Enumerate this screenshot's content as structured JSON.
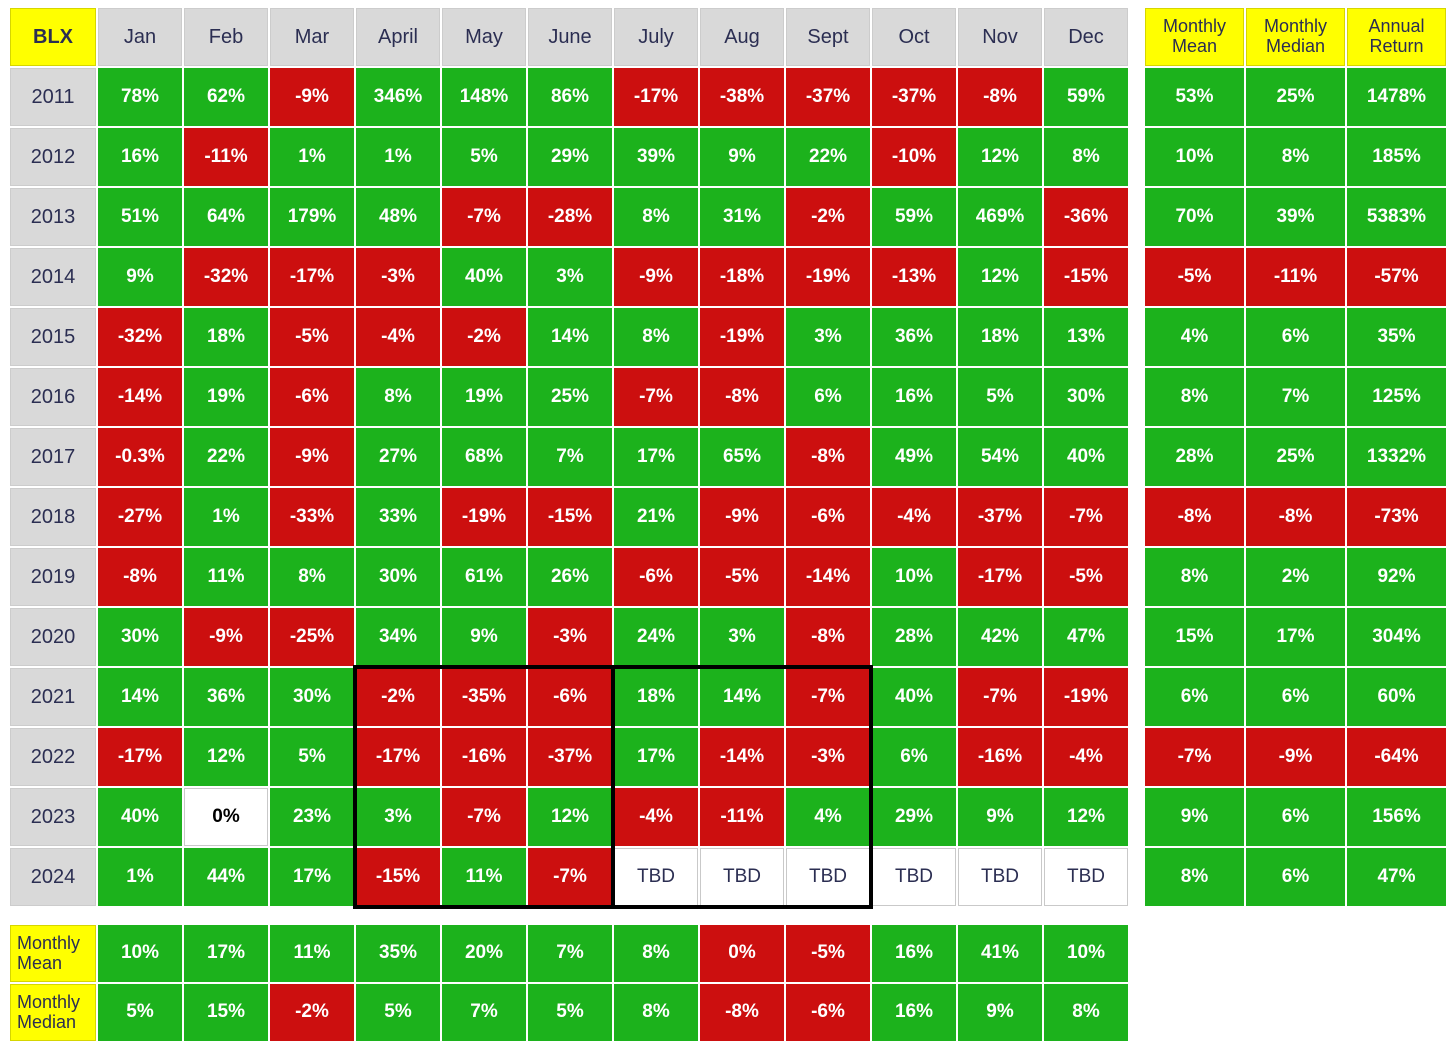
{
  "colors": {
    "positive_green": "#1cb21c",
    "negative_red": "#cc0f0f",
    "header_gray": "#d9d9d9",
    "label_yellow": "#ffff00",
    "dark_navy_text": "#2b2e52",
    "value_text_white": "#ffffff",
    "highlight_border_black": "#000000"
  },
  "chart_data": {
    "type": "heatmap",
    "corner_label": "BLX",
    "months": [
      "Jan",
      "Feb",
      "Mar",
      "April",
      "May",
      "June",
      "July",
      "Aug",
      "Sept",
      "Oct",
      "Nov",
      "Dec"
    ],
    "summary_headers": [
      "Monthly\nMean",
      "Monthly\nMedian",
      "Annual\nReturn"
    ],
    "rows": [
      {
        "year": "2011",
        "cells": [
          [
            "78%",
            "g"
          ],
          [
            "62%",
            "g"
          ],
          [
            "-9%",
            "r"
          ],
          [
            "346%",
            "g"
          ],
          [
            "148%",
            "g"
          ],
          [
            "86%",
            "g"
          ],
          [
            "-17%",
            "r"
          ],
          [
            "-38%",
            "r"
          ],
          [
            "-37%",
            "r"
          ],
          [
            "-37%",
            "r"
          ],
          [
            "-8%",
            "r"
          ],
          [
            "59%",
            "g"
          ]
        ],
        "summary": [
          [
            "53%",
            "g"
          ],
          [
            "25%",
            "g"
          ],
          [
            "1478%",
            "g"
          ]
        ]
      },
      {
        "year": "2012",
        "cells": [
          [
            "16%",
            "g"
          ],
          [
            "-11%",
            "r"
          ],
          [
            "1%",
            "g"
          ],
          [
            "1%",
            "g"
          ],
          [
            "5%",
            "g"
          ],
          [
            "29%",
            "g"
          ],
          [
            "39%",
            "g"
          ],
          [
            "9%",
            "g"
          ],
          [
            "22%",
            "g"
          ],
          [
            "-10%",
            "r"
          ],
          [
            "12%",
            "g"
          ],
          [
            "8%",
            "g"
          ]
        ],
        "summary": [
          [
            "10%",
            "g"
          ],
          [
            "8%",
            "g"
          ],
          [
            "185%",
            "g"
          ]
        ]
      },
      {
        "year": "2013",
        "cells": [
          [
            "51%",
            "g"
          ],
          [
            "64%",
            "g"
          ],
          [
            "179%",
            "g"
          ],
          [
            "48%",
            "g"
          ],
          [
            "-7%",
            "r"
          ],
          [
            "-28%",
            "r"
          ],
          [
            "8%",
            "g"
          ],
          [
            "31%",
            "g"
          ],
          [
            "-2%",
            "r"
          ],
          [
            "59%",
            "g"
          ],
          [
            "469%",
            "g"
          ],
          [
            "-36%",
            "r"
          ]
        ],
        "summary": [
          [
            "70%",
            "g"
          ],
          [
            "39%",
            "g"
          ],
          [
            "5383%",
            "g"
          ]
        ]
      },
      {
        "year": "2014",
        "cells": [
          [
            "9%",
            "g"
          ],
          [
            "-32%",
            "r"
          ],
          [
            "-17%",
            "r"
          ],
          [
            "-3%",
            "r"
          ],
          [
            "40%",
            "g"
          ],
          [
            "3%",
            "g"
          ],
          [
            "-9%",
            "r"
          ],
          [
            "-18%",
            "r"
          ],
          [
            "-19%",
            "r"
          ],
          [
            "-13%",
            "r"
          ],
          [
            "12%",
            "g"
          ],
          [
            "-15%",
            "r"
          ]
        ],
        "summary": [
          [
            "-5%",
            "r"
          ],
          [
            "-11%",
            "r"
          ],
          [
            "-57%",
            "r"
          ]
        ]
      },
      {
        "year": "2015",
        "cells": [
          [
            "-32%",
            "r"
          ],
          [
            "18%",
            "g"
          ],
          [
            "-5%",
            "r"
          ],
          [
            "-4%",
            "r"
          ],
          [
            "-2%",
            "r"
          ],
          [
            "14%",
            "g"
          ],
          [
            "8%",
            "g"
          ],
          [
            "-19%",
            "r"
          ],
          [
            "3%",
            "g"
          ],
          [
            "36%",
            "g"
          ],
          [
            "18%",
            "g"
          ],
          [
            "13%",
            "g"
          ]
        ],
        "summary": [
          [
            "4%",
            "g"
          ],
          [
            "6%",
            "g"
          ],
          [
            "35%",
            "g"
          ]
        ]
      },
      {
        "year": "2016",
        "cells": [
          [
            "-14%",
            "r"
          ],
          [
            "19%",
            "g"
          ],
          [
            "-6%",
            "r"
          ],
          [
            "8%",
            "g"
          ],
          [
            "19%",
            "g"
          ],
          [
            "25%",
            "g"
          ],
          [
            "-7%",
            "r"
          ],
          [
            "-8%",
            "r"
          ],
          [
            "6%",
            "g"
          ],
          [
            "16%",
            "g"
          ],
          [
            "5%",
            "g"
          ],
          [
            "30%",
            "g"
          ]
        ],
        "summary": [
          [
            "8%",
            "g"
          ],
          [
            "7%",
            "g"
          ],
          [
            "125%",
            "g"
          ]
        ]
      },
      {
        "year": "2017",
        "cells": [
          [
            "-0.3%",
            "r"
          ],
          [
            "22%",
            "g"
          ],
          [
            "-9%",
            "r"
          ],
          [
            "27%",
            "g"
          ],
          [
            "68%",
            "g"
          ],
          [
            "7%",
            "g"
          ],
          [
            "17%",
            "g"
          ],
          [
            "65%",
            "g"
          ],
          [
            "-8%",
            "r"
          ],
          [
            "49%",
            "g"
          ],
          [
            "54%",
            "g"
          ],
          [
            "40%",
            "g"
          ]
        ],
        "summary": [
          [
            "28%",
            "g"
          ],
          [
            "25%",
            "g"
          ],
          [
            "1332%",
            "g"
          ]
        ]
      },
      {
        "year": "2018",
        "cells": [
          [
            "-27%",
            "r"
          ],
          [
            "1%",
            "g"
          ],
          [
            "-33%",
            "r"
          ],
          [
            "33%",
            "g"
          ],
          [
            "-19%",
            "r"
          ],
          [
            "-15%",
            "r"
          ],
          [
            "21%",
            "g"
          ],
          [
            "-9%",
            "r"
          ],
          [
            "-6%",
            "r"
          ],
          [
            "-4%",
            "r"
          ],
          [
            "-37%",
            "r"
          ],
          [
            "-7%",
            "r"
          ]
        ],
        "summary": [
          [
            "-8%",
            "r"
          ],
          [
            "-8%",
            "r"
          ],
          [
            "-73%",
            "r"
          ]
        ]
      },
      {
        "year": "2019",
        "cells": [
          [
            "-8%",
            "r"
          ],
          [
            "11%",
            "g"
          ],
          [
            "8%",
            "g"
          ],
          [
            "30%",
            "g"
          ],
          [
            "61%",
            "g"
          ],
          [
            "26%",
            "g"
          ],
          [
            "-6%",
            "r"
          ],
          [
            "-5%",
            "r"
          ],
          [
            "-14%",
            "r"
          ],
          [
            "10%",
            "g"
          ],
          [
            "-17%",
            "r"
          ],
          [
            "-5%",
            "r"
          ]
        ],
        "summary": [
          [
            "8%",
            "g"
          ],
          [
            "2%",
            "g"
          ],
          [
            "92%",
            "g"
          ]
        ]
      },
      {
        "year": "2020",
        "cells": [
          [
            "30%",
            "g"
          ],
          [
            "-9%",
            "r"
          ],
          [
            "-25%",
            "r"
          ],
          [
            "34%",
            "g"
          ],
          [
            "9%",
            "g"
          ],
          [
            "-3%",
            "r"
          ],
          [
            "24%",
            "g"
          ],
          [
            "3%",
            "g"
          ],
          [
            "-8%",
            "r"
          ],
          [
            "28%",
            "g"
          ],
          [
            "42%",
            "g"
          ],
          [
            "47%",
            "g"
          ]
        ],
        "summary": [
          [
            "15%",
            "g"
          ],
          [
            "17%",
            "g"
          ],
          [
            "304%",
            "g"
          ]
        ]
      },
      {
        "year": "2021",
        "cells": [
          [
            "14%",
            "g"
          ],
          [
            "36%",
            "g"
          ],
          [
            "30%",
            "g"
          ],
          [
            "-2%",
            "r"
          ],
          [
            "-35%",
            "r"
          ],
          [
            "-6%",
            "r"
          ],
          [
            "18%",
            "g"
          ],
          [
            "14%",
            "g"
          ],
          [
            "-7%",
            "r"
          ],
          [
            "40%",
            "g"
          ],
          [
            "-7%",
            "r"
          ],
          [
            "-19%",
            "r"
          ]
        ],
        "summary": [
          [
            "6%",
            "g"
          ],
          [
            "6%",
            "g"
          ],
          [
            "60%",
            "g"
          ]
        ]
      },
      {
        "year": "2022",
        "cells": [
          [
            "-17%",
            "r"
          ],
          [
            "12%",
            "g"
          ],
          [
            "5%",
            "g"
          ],
          [
            "-17%",
            "r"
          ],
          [
            "-16%",
            "r"
          ],
          [
            "-37%",
            "r"
          ],
          [
            "17%",
            "g"
          ],
          [
            "-14%",
            "r"
          ],
          [
            "-3%",
            "r"
          ],
          [
            "6%",
            "g"
          ],
          [
            "-16%",
            "r"
          ],
          [
            "-4%",
            "r"
          ]
        ],
        "summary": [
          [
            "-7%",
            "r"
          ],
          [
            "-9%",
            "r"
          ],
          [
            "-64%",
            "r"
          ]
        ]
      },
      {
        "year": "2023",
        "cells": [
          [
            "40%",
            "g"
          ],
          [
            "0%",
            "b"
          ],
          [
            "23%",
            "g"
          ],
          [
            "3%",
            "g"
          ],
          [
            "-7%",
            "r"
          ],
          [
            "12%",
            "g"
          ],
          [
            "-4%",
            "r"
          ],
          [
            "-11%",
            "r"
          ],
          [
            "4%",
            "g"
          ],
          [
            "29%",
            "g"
          ],
          [
            "9%",
            "g"
          ],
          [
            "12%",
            "g"
          ]
        ],
        "summary": [
          [
            "9%",
            "g"
          ],
          [
            "6%",
            "g"
          ],
          [
            "156%",
            "g"
          ]
        ]
      },
      {
        "year": "2024",
        "cells": [
          [
            "1%",
            "g"
          ],
          [
            "44%",
            "g"
          ],
          [
            "17%",
            "g"
          ],
          [
            "-15%",
            "r"
          ],
          [
            "11%",
            "g"
          ],
          [
            "-7%",
            "r"
          ],
          [
            "TBD",
            "w"
          ],
          [
            "TBD",
            "w"
          ],
          [
            "TBD",
            "w"
          ],
          [
            "TBD",
            "w"
          ],
          [
            "TBD",
            "w"
          ],
          [
            "TBD",
            "w"
          ]
        ],
        "summary": [
          [
            "8%",
            "g"
          ],
          [
            "6%",
            "g"
          ],
          [
            "47%",
            "g"
          ]
        ]
      }
    ],
    "footer_rows": [
      {
        "label": "Monthly\nMean",
        "cells": [
          [
            "10%",
            "g"
          ],
          [
            "17%",
            "g"
          ],
          [
            "11%",
            "g"
          ],
          [
            "35%",
            "g"
          ],
          [
            "20%",
            "g"
          ],
          [
            "7%",
            "g"
          ],
          [
            "8%",
            "g"
          ],
          [
            "0%",
            "r"
          ],
          [
            "-5%",
            "r"
          ],
          [
            "16%",
            "g"
          ],
          [
            "41%",
            "g"
          ],
          [
            "10%",
            "g"
          ]
        ]
      },
      {
        "label": "Monthly\nMedian",
        "cells": [
          [
            "5%",
            "g"
          ],
          [
            "15%",
            "g"
          ],
          [
            "-2%",
            "r"
          ],
          [
            "5%",
            "g"
          ],
          [
            "7%",
            "g"
          ],
          [
            "5%",
            "g"
          ],
          [
            "8%",
            "g"
          ],
          [
            "-8%",
            "r"
          ],
          [
            "-6%",
            "r"
          ],
          [
            "16%",
            "g"
          ],
          [
            "9%",
            "g"
          ],
          [
            "8%",
            "g"
          ]
        ]
      }
    ],
    "highlights": [
      {
        "months": "April–June",
        "years": "2021–2024"
      },
      {
        "months": "July–Sept",
        "years": "2021–2024"
      }
    ]
  }
}
